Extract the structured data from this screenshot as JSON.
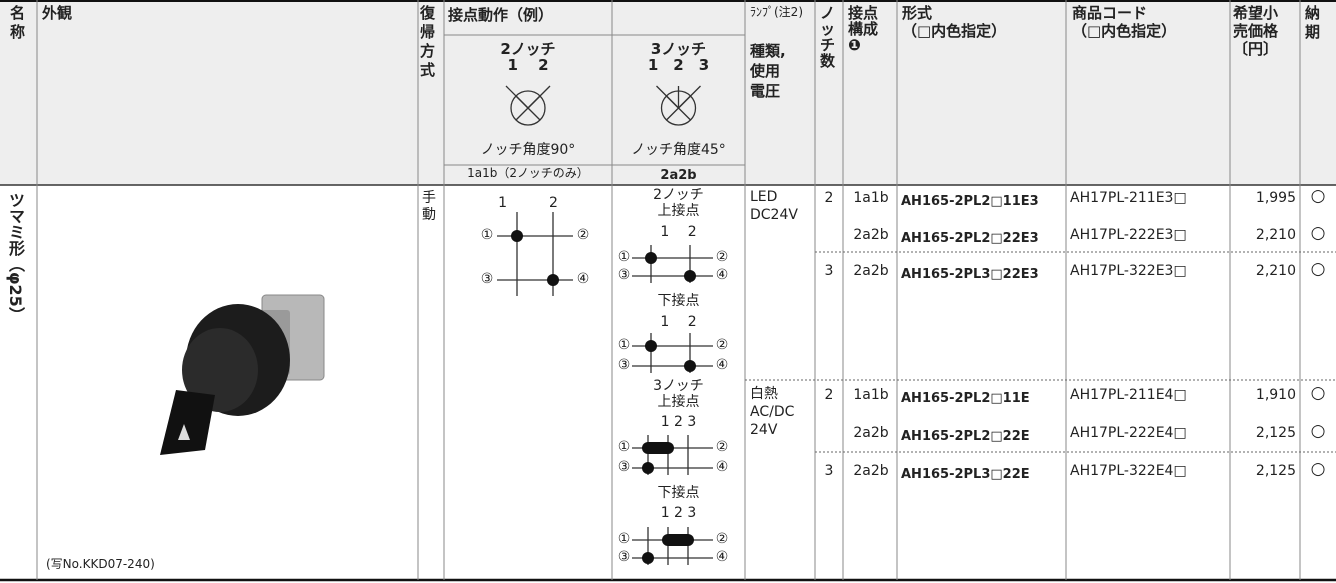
{
  "header": {
    "name": [
      "名",
      "称"
    ],
    "appearance": "外観",
    "return_method": [
      "復",
      "帰",
      "方",
      "式"
    ],
    "contact_action": "接点動作（例）",
    "notch2": {
      "title": "2ノッチ",
      "positions": "1　 2",
      "angle": "ノッチ角度90°",
      "contacts": "1a1b（2ノッチのみ）"
    },
    "notch3": {
      "title": "3ノッチ",
      "positions": "1　2　3",
      "angle": "ノッチ角度45°",
      "contacts": "2a2b"
    },
    "lamp": "ﾗﾝﾌﾟ(注2)",
    "lamp_type": [
      "種類,",
      "使用",
      "電圧"
    ],
    "notches": [
      "ノ",
      "ッ",
      "チ",
      "数"
    ],
    "contact_config": [
      "接点",
      "構成",
      "❶"
    ],
    "model": [
      "形式",
      "（□内色指定）"
    ],
    "code": [
      "商品コード",
      "（□内色指定）"
    ],
    "price": [
      "希望小",
      "売価格",
      "〔円〕"
    ],
    "delivery": [
      "納",
      "期"
    ]
  },
  "body": {
    "product_name": "ツマミ形（φ25）",
    "photo_caption": "(写No.KKD07-240)",
    "return_method": [
      "手",
      "動"
    ],
    "diagram_2notch": {
      "positions": "1　　　2",
      "terminals": [
        "①",
        "②",
        "③",
        "④"
      ]
    },
    "diagram_3notch": [
      {
        "title": "2ノッチ",
        "label": "上接点",
        "positions": "1　 2",
        "terminals": [
          "①",
          "②",
          "③",
          "④"
        ]
      },
      {
        "label": "下接点",
        "positions": "1　 2",
        "terminals": [
          "①",
          "②",
          "③",
          "④"
        ]
      },
      {
        "title": "3ノッチ",
        "label": "上接点",
        "positions": "1 2 3",
        "terminals": [
          "①",
          "②",
          "③",
          "④"
        ]
      },
      {
        "label": "下接点",
        "positions": "1 2 3",
        "terminals": [
          "①",
          "②",
          "③",
          "④"
        ]
      }
    ],
    "groups": [
      {
        "lamp": [
          "LED",
          "DC24V"
        ],
        "notch_groups": [
          {
            "notches": "2",
            "rows": [
              {
                "contact": "1a1b",
                "model": "AH165-2PL2□11E3",
                "code": "AH17PL-211E3□",
                "price": "1,995",
                "delivery": "○"
              },
              {
                "contact": "2a2b",
                "model": "AH165-2PL2□22E3",
                "code": "AH17PL-222E3□",
                "price": "2,210",
                "delivery": "○"
              }
            ]
          },
          {
            "notches": "3",
            "rows": [
              {
                "contact": "2a2b",
                "model": "AH165-2PL3□22E3",
                "code": "AH17PL-322E3□",
                "price": "2,210",
                "delivery": "○"
              }
            ]
          }
        ]
      },
      {
        "lamp": [
          "白熱",
          "AC/DC",
          "24V"
        ],
        "notch_groups": [
          {
            "notches": "2",
            "rows": [
              {
                "contact": "1a1b",
                "model": "AH165-2PL2□11E",
                "code": "AH17PL-211E4□",
                "price": "1,910",
                "delivery": "○"
              },
              {
                "contact": "2a2b",
                "model": "AH165-2PL2□22E",
                "code": "AH17PL-222E4□",
                "price": "2,125",
                "delivery": "○"
              }
            ]
          },
          {
            "notches": "3",
            "rows": [
              {
                "contact": "2a2b",
                "model": "AH165-2PL3□22E",
                "code": "AH17PL-322E4□",
                "price": "2,125",
                "delivery": "○"
              }
            ]
          }
        ]
      }
    ]
  }
}
